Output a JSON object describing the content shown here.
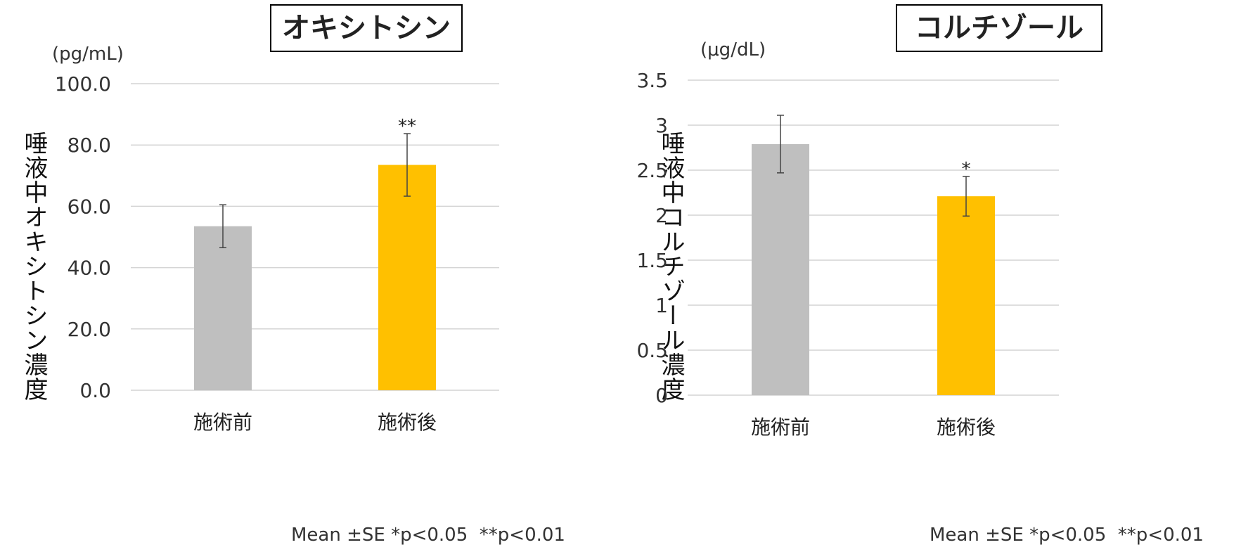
{
  "footnote": "Mean ±SE *p<0.05  **p<0.01",
  "chart_data": [
    {
      "type": "bar",
      "title": "オキシトシン",
      "unit": "(pg/mL)",
      "ylabel": "唾液中オキシトシン濃度",
      "categories": [
        "施術前",
        "施術後"
      ],
      "values": [
        53.5,
        73.5
      ],
      "errors": [
        7.0,
        10.2
      ],
      "significance": [
        "",
        "**"
      ],
      "colors": [
        "#bfbfbf",
        "#ffc000"
      ],
      "ylim": [
        0,
        100
      ],
      "yticks": [
        0,
        20,
        40,
        60,
        80,
        100
      ],
      "ytick_labels": [
        "0.0",
        "20.0",
        "40.0",
        "60.0",
        "80.0",
        "100.0"
      ],
      "grid": true
    },
    {
      "type": "bar",
      "title": "コルチゾール",
      "unit": "(μg/dL)",
      "ylabel": "唾液中コルチゾール濃度",
      "categories": [
        "施術前",
        "施術後"
      ],
      "values": [
        2.79,
        2.21
      ],
      "errors": [
        0.32,
        0.22
      ],
      "significance": [
        "",
        "*"
      ],
      "colors": [
        "#bfbfbf",
        "#ffc000"
      ],
      "ylim": [
        0,
        3.5
      ],
      "yticks": [
        0,
        0.5,
        1,
        1.5,
        2,
        2.5,
        3,
        3.5
      ],
      "ytick_labels": [
        "0",
        "0.5",
        "1",
        "1.5",
        "2",
        "2.5",
        "3",
        "3.5"
      ],
      "grid": true
    }
  ]
}
